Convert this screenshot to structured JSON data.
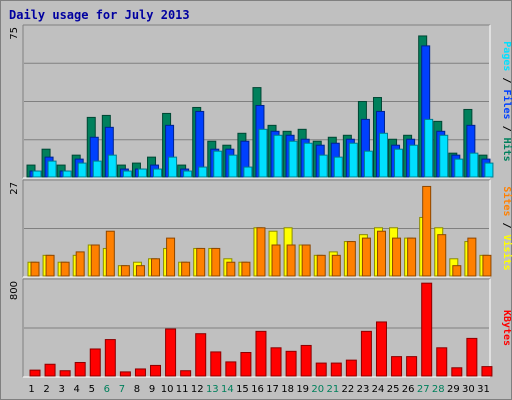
{
  "header": {
    "title": "Daily usage for July 2013"
  },
  "colors": {
    "hits": "#00805c",
    "files": "#0040ff",
    "pages": "#00e0ff",
    "visits": "#ffff00",
    "sites": "#ff8000",
    "kbytes": "#ff0000",
    "weekend_label": "#00805c",
    "weekday_label": "#000000",
    "label_sep": "#000000"
  },
  "chart_data": [
    {
      "type": "bar",
      "panel": "top",
      "y_max_label": "75",
      "ylim": [
        0,
        75
      ],
      "side_labels": [
        "Pages",
        " / ",
        "Files",
        " / ",
        "Hits"
      ],
      "categories": [
        "1",
        "2",
        "3",
        "4",
        "5",
        "6",
        "7",
        "8",
        "9",
        "10",
        "11",
        "12",
        "13",
        "14",
        "15",
        "16",
        "17",
        "18",
        "19",
        "20",
        "21",
        "22",
        "23",
        "24",
        "25",
        "26",
        "27",
        "28",
        "29",
        "30",
        "31"
      ],
      "series": [
        {
          "name": "Hits",
          "values": [
            6,
            14,
            6,
            11,
            30,
            31,
            6,
            7,
            10,
            32,
            6,
            35,
            18,
            16,
            22,
            45,
            26,
            23,
            24,
            18,
            20,
            21,
            38,
            40,
            19,
            21,
            71,
            28,
            12,
            34,
            11
          ]
        },
        {
          "name": "Files",
          "values": [
            3,
            10,
            3,
            9,
            20,
            25,
            4,
            4,
            6,
            26,
            4,
            33,
            14,
            14,
            18,
            36,
            23,
            21,
            19,
            16,
            17,
            19,
            29,
            33,
            16,
            19,
            66,
            23,
            11,
            26,
            9
          ]
        },
        {
          "name": "Pages",
          "values": [
            3,
            8,
            3,
            7,
            8,
            11,
            3,
            4,
            4,
            10,
            3,
            5,
            13,
            11,
            5,
            24,
            21,
            18,
            17,
            11,
            10,
            17,
            13,
            22,
            14,
            16,
            29,
            21,
            9,
            12,
            7
          ]
        }
      ]
    },
    {
      "type": "bar",
      "panel": "middle",
      "y_max_label": "27",
      "ylim": [
        0,
        27
      ],
      "side_labels": [
        "Sites",
        " / ",
        "Visits"
      ],
      "categories": [
        "1",
        "2",
        "3",
        "4",
        "5",
        "6",
        "7",
        "8",
        "9",
        "10",
        "11",
        "12",
        "13",
        "14",
        "15",
        "16",
        "17",
        "18",
        "19",
        "20",
        "21",
        "22",
        "23",
        "24",
        "25",
        "26",
        "27",
        "28",
        "29",
        "30",
        "31"
      ],
      "series": [
        {
          "name": "Visits",
          "values": [
            4,
            6,
            4,
            6,
            9,
            8,
            3,
            4,
            5,
            8,
            4,
            8,
            8,
            5,
            4,
            14,
            13,
            14,
            9,
            6,
            7,
            10,
            12,
            14,
            14,
            11,
            17,
            14,
            5,
            10,
            6
          ]
        },
        {
          "name": "Sites",
          "values": [
            4,
            6,
            4,
            7,
            9,
            13,
            3,
            3,
            5,
            11,
            4,
            8,
            8,
            4,
            4,
            14,
            9,
            9,
            9,
            6,
            6,
            10,
            11,
            13,
            11,
            11,
            26,
            12,
            3,
            11,
            6
          ]
        }
      ]
    },
    {
      "type": "bar",
      "panel": "bottom",
      "y_max_label": "800",
      "ylim": [
        0,
        800
      ],
      "side_labels": [
        "KBytes"
      ],
      "categories": [
        "1",
        "2",
        "3",
        "4",
        "5",
        "6",
        "7",
        "8",
        "9",
        "10",
        "11",
        "12",
        "13",
        "14",
        "15",
        "16",
        "17",
        "18",
        "19",
        "20",
        "21",
        "22",
        "23",
        "24",
        "25",
        "26",
        "27",
        "28",
        "29",
        "30",
        "31"
      ],
      "series": [
        {
          "name": "KBytes",
          "values": [
            50,
            100,
            45,
            115,
            230,
            310,
            35,
            60,
            90,
            400,
            45,
            360,
            205,
            120,
            200,
            380,
            240,
            210,
            260,
            110,
            110,
            135,
            380,
            460,
            165,
            165,
            790,
            240,
            70,
            320,
            80
          ]
        }
      ]
    }
  ],
  "x_labels": {
    "labels": [
      "1",
      "2",
      "3",
      "4",
      "5",
      "6",
      "7",
      "8",
      "9",
      "10",
      "11",
      "12",
      "13",
      "14",
      "15",
      "16",
      "17",
      "18",
      "19",
      "20",
      "21",
      "22",
      "23",
      "24",
      "25",
      "26",
      "27",
      "28",
      "29",
      "30",
      "31"
    ],
    "weekend": [
      false,
      false,
      false,
      false,
      false,
      true,
      true,
      false,
      false,
      false,
      false,
      false,
      true,
      true,
      false,
      false,
      false,
      false,
      false,
      true,
      true,
      false,
      false,
      false,
      false,
      false,
      true,
      true,
      false,
      false,
      false
    ]
  }
}
